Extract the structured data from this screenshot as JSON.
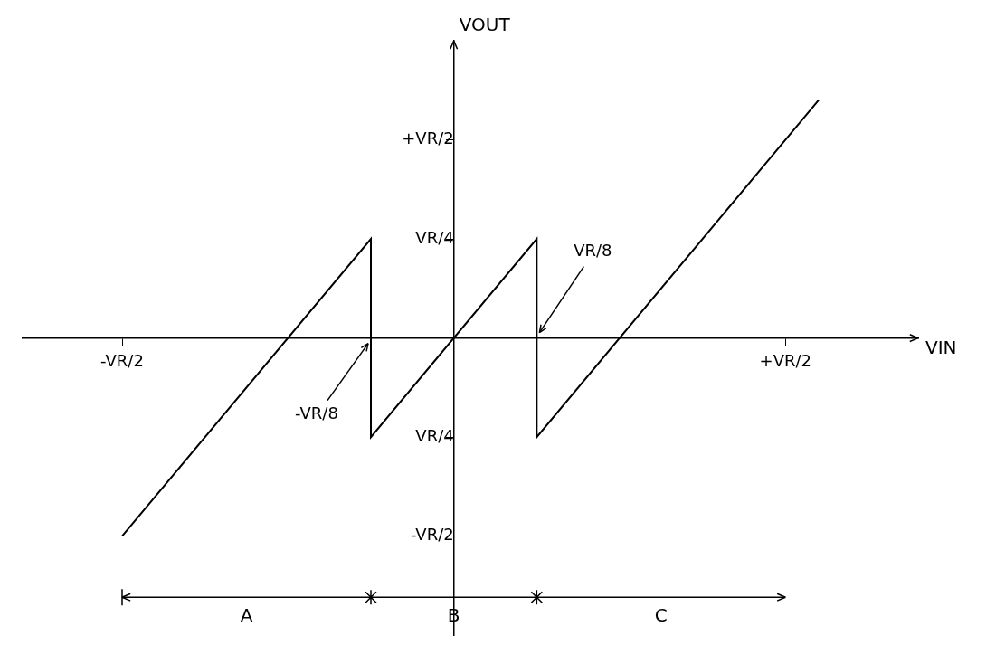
{
  "chart_data": {
    "type": "line",
    "x_label": "VIN",
    "y_label": "VOUT",
    "x": [
      -0.5,
      -0.125,
      -0.125,
      0.125,
      0.125,
      0.55
    ],
    "values": [
      -0.5,
      0.25,
      -0.25,
      0.25,
      -0.25,
      0.6
    ],
    "color": "#000000",
    "xlim": [
      -0.65,
      0.7
    ],
    "ylim": [
      -0.75,
      0.75
    ],
    "xticks": [
      {
        "value": -0.5,
        "label": "-VR/2"
      },
      {
        "value": 0.5,
        "label": "+VR/2"
      }
    ],
    "yticks": [
      {
        "value": -0.5,
        "label": "-VR/2"
      },
      {
        "value": -0.25,
        "label": "VR/4"
      },
      {
        "value": 0.25,
        "label": "VR/4"
      },
      {
        "value": 0.5,
        "label": "+VR/2"
      }
    ],
    "grid": false,
    "annotations": [
      {
        "text": "-VR/8",
        "x": -0.125,
        "y": 0
      },
      {
        "text": "VR/8",
        "x": 0.125,
        "y": 0
      }
    ],
    "regions": [
      {
        "label": "A",
        "from": -0.5,
        "to": -0.125
      },
      {
        "label": "B",
        "from": -0.125,
        "to": 0.125
      },
      {
        "label": "C",
        "from": 0.125,
        "to": 0.5
      }
    ]
  }
}
